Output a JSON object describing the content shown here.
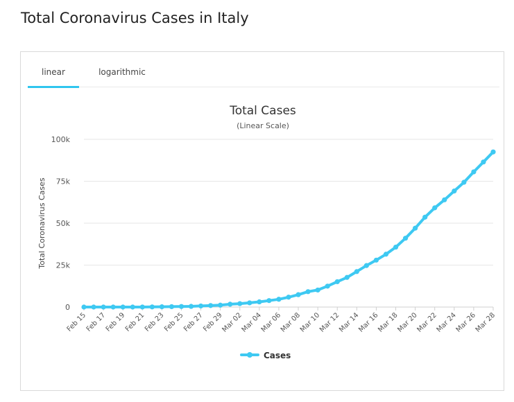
{
  "page": {
    "title": "Total Coronavirus Cases in Italy"
  },
  "tabs": [
    {
      "label": "linear",
      "active": true
    },
    {
      "label": "logarithmic",
      "active": false
    }
  ],
  "colors": {
    "accent": "#2fc6ef",
    "line": "#3ec9f2",
    "grid": "#e6e6e6",
    "text": "#333333"
  },
  "chart_data": {
    "type": "line",
    "title": "Total Cases",
    "subtitle": "(Linear Scale)",
    "xlabel": "",
    "ylabel": "Total Coronavirus Cases",
    "ylim": [
      0,
      100000
    ],
    "yticks": [
      {
        "value": 0,
        "label": "0"
      },
      {
        "value": 25000,
        "label": "25k"
      },
      {
        "value": 50000,
        "label": "50k"
      },
      {
        "value": 75000,
        "label": "75k"
      },
      {
        "value": 100000,
        "label": "100k"
      }
    ],
    "grid": true,
    "legend_position": "bottom-center",
    "categories": [
      "Feb 15",
      "Feb 16",
      "Feb 17",
      "Feb 18",
      "Feb 19",
      "Feb 20",
      "Feb 21",
      "Feb 22",
      "Feb 23",
      "Feb 24",
      "Feb 25",
      "Feb 26",
      "Feb 27",
      "Feb 28",
      "Feb 29",
      "Mar 01",
      "Mar 02",
      "Mar 03",
      "Mar 04",
      "Mar 05",
      "Mar 06",
      "Mar 07",
      "Mar 08",
      "Mar 09",
      "Mar 10",
      "Mar 11",
      "Mar 12",
      "Mar 13",
      "Mar 14",
      "Mar 15",
      "Mar 16",
      "Mar 17",
      "Mar 18",
      "Mar 19",
      "Mar 20",
      "Mar 21",
      "Mar 22",
      "Mar 23",
      "Mar 24",
      "Mar 25",
      "Mar 26",
      "Mar 27",
      "Mar 28"
    ],
    "tick_labels": [
      "Feb 15",
      "Feb 17",
      "Feb 19",
      "Feb 21",
      "Feb 23",
      "Feb 25",
      "Feb 27",
      "Feb 29",
      "Mar 02",
      "Mar 04",
      "Mar 06",
      "Mar 08",
      "Mar 10",
      "Mar 12",
      "Mar 14",
      "Mar 16",
      "Mar 18",
      "Mar 20",
      "Mar 22",
      "Mar 24",
      "Mar 26",
      "Mar 28"
    ],
    "series": [
      {
        "name": "Cases",
        "values": [
          3,
          3,
          3,
          3,
          3,
          3,
          20,
          79,
          157,
          229,
          322,
          400,
          650,
          888,
          1128,
          1694,
          2036,
          2502,
          3089,
          3858,
          4636,
          5883,
          7375,
          9172,
          10149,
          12462,
          15113,
          17660,
          21157,
          24747,
          27980,
          31506,
          35713,
          41035,
          47021,
          53578,
          59138,
          63927,
          69176,
          74386,
          80589,
          86498,
          92472
        ]
      }
    ]
  }
}
